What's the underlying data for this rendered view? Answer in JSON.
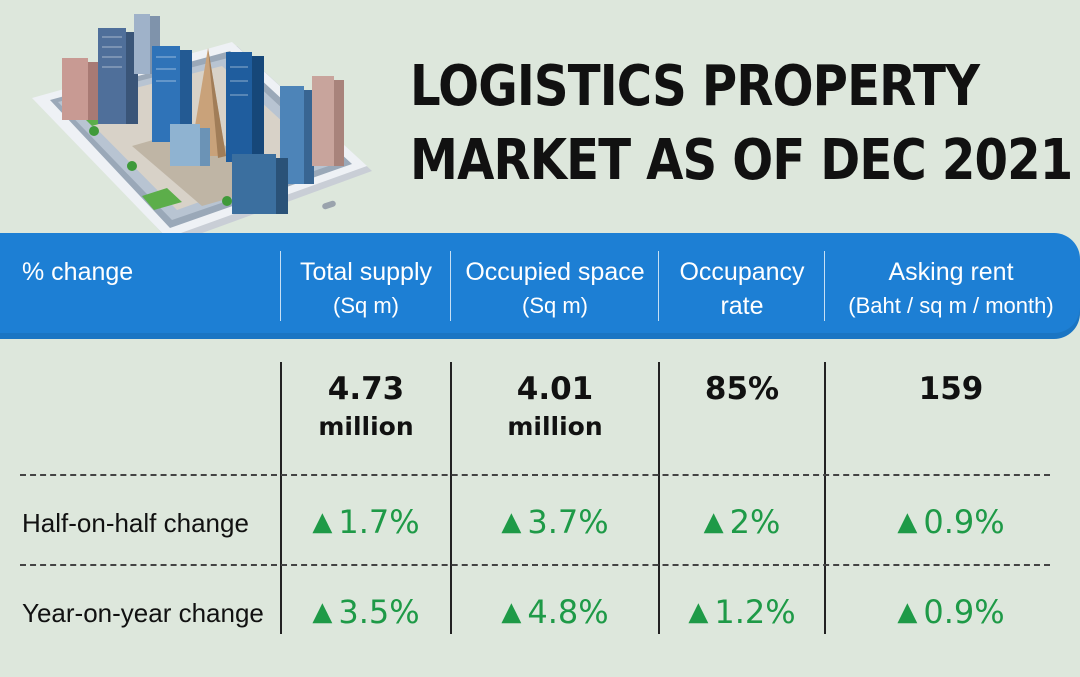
{
  "title": {
    "line1": "LOGISTICS PROPERTY",
    "line2": "MARKET AS OF DEC 2021"
  },
  "header": {
    "row_label": "% change",
    "columns": [
      {
        "line1": "Total supply",
        "line2": "(Sq m)"
      },
      {
        "line1": "Occupied space",
        "line2": "(Sq m)"
      },
      {
        "line1": "Occupancy",
        "line2": "rate"
      },
      {
        "line1": "Asking rent",
        "line2": "(Baht / sq m / month)"
      }
    ]
  },
  "values": [
    {
      "value": "4.73",
      "unit": "million"
    },
    {
      "value": "4.01",
      "unit": "million"
    },
    {
      "value": "85%",
      "unit": ""
    },
    {
      "value": "159",
      "unit": ""
    }
  ],
  "rows": [
    {
      "label": "Half-on-half change",
      "changes": [
        "1.7%",
        "3.7%",
        "2%",
        "0.9%"
      ]
    },
    {
      "label": "Year-on-year change",
      "changes": [
        "3.5%",
        "4.8%",
        "1.2%",
        "0.9%"
      ]
    }
  ],
  "icons": {
    "up_arrow": "▲",
    "illustration": "city-on-smartphone-illustration"
  },
  "colors": {
    "header_bg": "#1d7fd4",
    "increase": "#1e9a47",
    "background": "#dde7dc"
  }
}
